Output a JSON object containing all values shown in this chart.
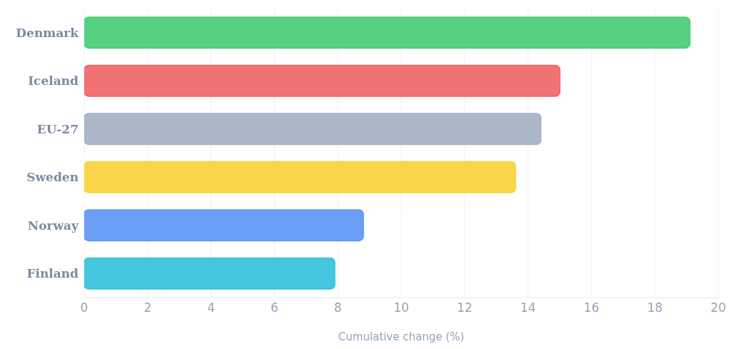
{
  "chart_data": {
    "type": "bar",
    "orientation": "horizontal",
    "xlabel": "Cumulative change (%)",
    "categories": [
      "Denmark",
      "Iceland",
      "EU-27",
      "Sweden",
      "Norway",
      "Finland"
    ],
    "values": [
      19.1,
      15.0,
      14.4,
      13.6,
      8.8,
      7.9
    ],
    "colors": [
      "#4ecf7a",
      "#f06a6a",
      "#a8b3c7",
      "#f9d33f",
      "#6399f5",
      "#3ac3dc"
    ],
    "xlim": [
      0,
      20
    ],
    "xticks": [
      0,
      2,
      4,
      6,
      8,
      10,
      12,
      14,
      16,
      18,
      20
    ],
    "grid": "x"
  }
}
